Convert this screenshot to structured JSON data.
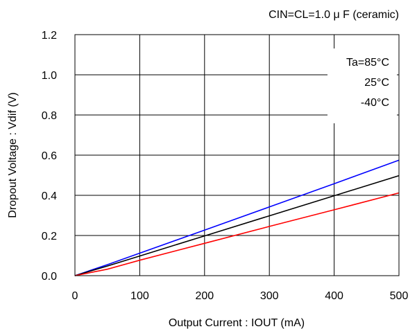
{
  "chart_data": {
    "type": "line",
    "title": "CIN=CL=1.0 μ F  (ceramic)",
    "xlabel": "Output Current : IOUT (mA)",
    "ylabel": "Dropout Voltage : Vdif (V)",
    "xlim": [
      0,
      500
    ],
    "ylim": [
      0,
      1.2
    ],
    "x_ticks": [
      0,
      100,
      200,
      300,
      400,
      500
    ],
    "y_ticks": [
      0.0,
      0.2,
      0.4,
      0.6,
      0.8,
      1.0,
      1.2
    ],
    "x_tick_labels": [
      "0",
      "100",
      "200",
      "300",
      "400",
      "500"
    ],
    "y_tick_labels": [
      "0.0",
      "0.2",
      "0.4",
      "0.6",
      "0.8",
      "1.0",
      "1.2"
    ],
    "grid": true,
    "legend_position": "top-right",
    "series": [
      {
        "name": "Ta=85°C",
        "color": "#0000ff",
        "x": [
          0,
          50,
          100,
          200,
          300,
          400,
          500
        ],
        "y": [
          0,
          0.055,
          0.112,
          0.227,
          0.342,
          0.458,
          0.575
        ]
      },
      {
        "name": "25°C",
        "color": "#000000",
        "x": [
          0,
          50,
          100,
          200,
          300,
          400,
          500
        ],
        "y": [
          0,
          0.048,
          0.098,
          0.198,
          0.298,
          0.398,
          0.498
        ]
      },
      {
        "name": "-40°C",
        "color": "#ff0000",
        "x": [
          0,
          50,
          100,
          200,
          300,
          400,
          500
        ],
        "y": [
          0,
          0.032,
          0.077,
          0.161,
          0.245,
          0.328,
          0.412
        ]
      }
    ]
  }
}
